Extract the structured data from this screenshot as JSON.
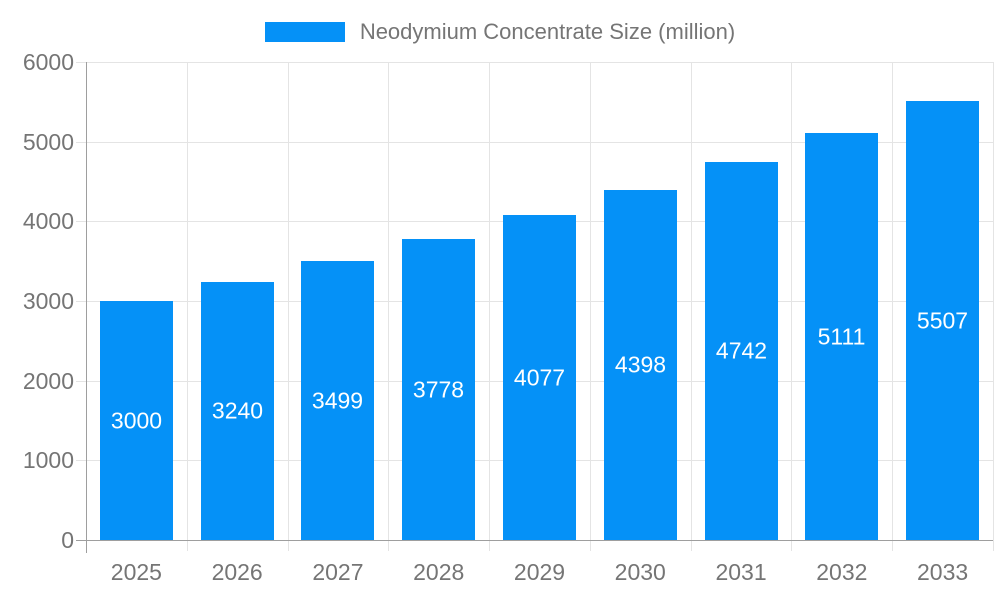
{
  "legend": {
    "label": "Neodymium Concentrate Size (million)"
  },
  "chart_data": {
    "type": "bar",
    "title": "",
    "series_name": "Neodymium Concentrate Size (million)",
    "categories": [
      "2025",
      "2026",
      "2027",
      "2028",
      "2029",
      "2030",
      "2031",
      "2032",
      "2033"
    ],
    "values": [
      3000,
      3240,
      3499,
      3778,
      4077,
      4398,
      4742,
      5111,
      5507
    ],
    "bar_labels": [
      "3000",
      "3240",
      "3499",
      "3778",
      "4077",
      "4398",
      "4742",
      "5111",
      "5507"
    ],
    "bar_label_position": "inside-center",
    "xlabel": "",
    "ylabel": "",
    "ylim": [
      0,
      6000
    ],
    "yticks": [
      0,
      1000,
      2000,
      3000,
      4000,
      5000,
      6000
    ],
    "grid": true,
    "legend_position": "top-center",
    "colors": {
      "bar": "#0591f7",
      "grid": "#e4e4e4",
      "axis": "#9e9e9e",
      "axis_text": "#757575",
      "legend_text": "#757575",
      "value_text": "#ffffff",
      "background": "#ffffff"
    }
  }
}
